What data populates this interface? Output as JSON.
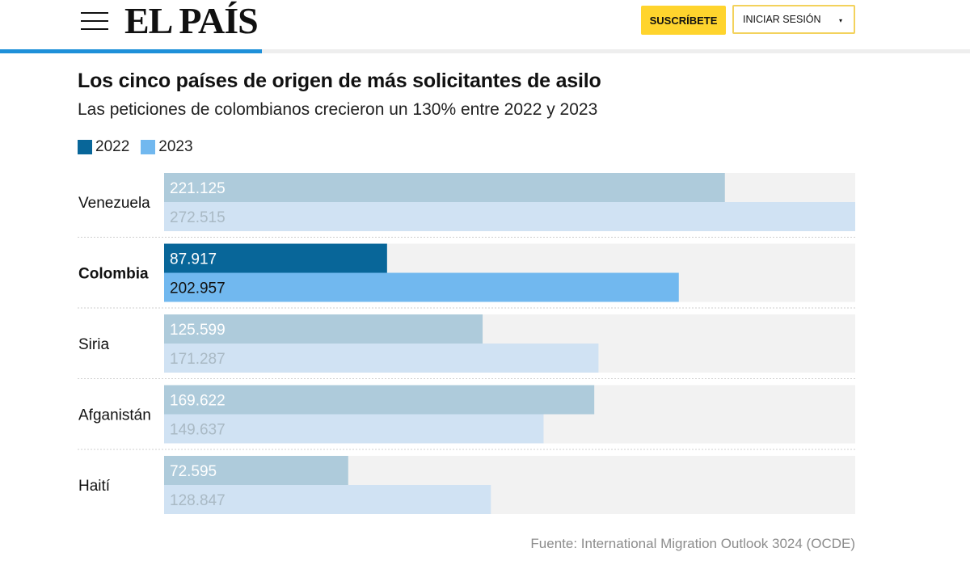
{
  "header": {
    "logo": "EL PAÍS",
    "subscribe_label": "SUSCRÍBETE",
    "login_label": "INICIAR SESIÓN",
    "login_caret": "▾",
    "reading_progress": 0.27
  },
  "colors": {
    "accent": "#ffd42d",
    "progress": "#1e90d9",
    "highlight_2022": "#086699",
    "highlight_2023": "#71b8ef",
    "muted_2022": "#aecbdb",
    "muted_2023": "#d0e2f3",
    "track": "#f2f2f2"
  },
  "chart_data": {
    "type": "bar",
    "orientation": "horizontal",
    "title": "Los cinco países de origen de más solicitantes de asilo",
    "subtitle": "Las peticiones de colombianos crecieron un 130% entre 2022 y 2023",
    "categories": [
      "Venezuela",
      "Colombia",
      "Siria",
      "Afganistán",
      "Haití"
    ],
    "highlight": "Colombia",
    "series": [
      {
        "name": "2022",
        "values": [
          221125,
          87917,
          125599,
          169622,
          72595
        ],
        "labels": [
          "221.125",
          "87.917",
          "125.599",
          "169.622",
          "72.595"
        ]
      },
      {
        "name": "2023",
        "values": [
          272515,
          202957,
          171287,
          149637,
          128847
        ],
        "labels": [
          "272.515",
          "202.957",
          "171.287",
          "149.637",
          "128.847"
        ]
      }
    ],
    "xlim": [
      0,
      272515
    ],
    "legend_position": "top-left",
    "grid": false,
    "source": "Fuente: International Migration Outlook 3024 (OCDE)"
  }
}
